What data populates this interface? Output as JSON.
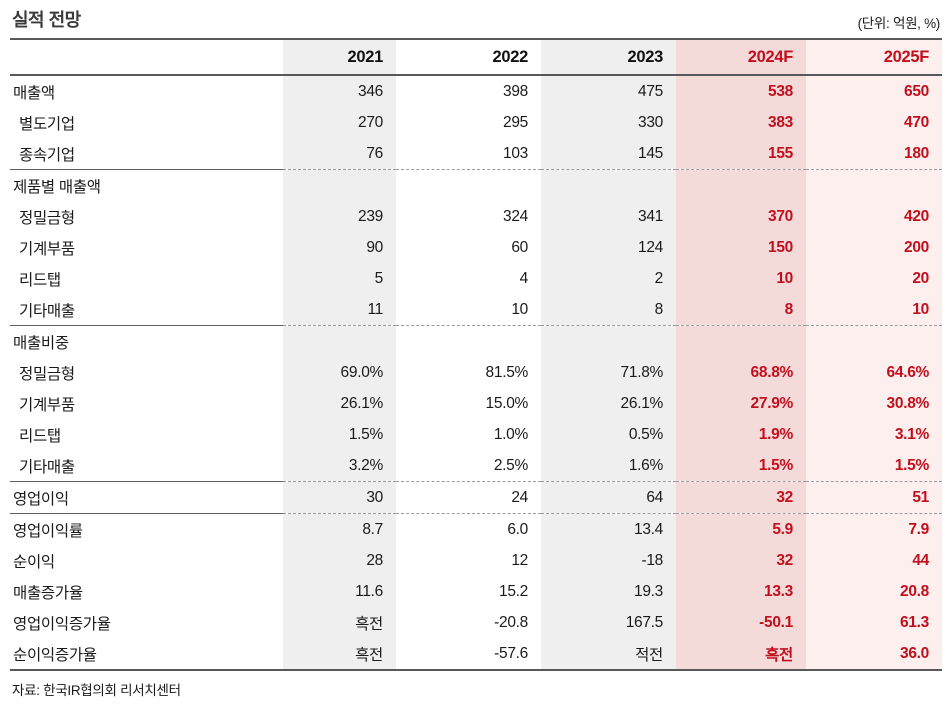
{
  "header": {
    "title": "실적 전망",
    "unit_label": "(단위: 억원, %)"
  },
  "colors": {
    "accent_red": "#c20f1e",
    "column_gray": "#f0efef",
    "forecast_pink": "#f5dada",
    "forecast_pink_light": "#fcefee",
    "rule_dark": "#57585a"
  },
  "table": {
    "label_header": "",
    "columns": [
      "2021",
      "2022",
      "2023",
      "2024F",
      "2025F"
    ],
    "forecast_columns": [
      "2024F",
      "2025F"
    ],
    "rows": [
      {
        "label": "매출액",
        "indent": false,
        "divider_above": false,
        "values": [
          "346",
          "398",
          "475",
          "538",
          "650"
        ]
      },
      {
        "label": "별도기업",
        "indent": true,
        "divider_above": false,
        "values": [
          "270",
          "295",
          "330",
          "383",
          "470"
        ]
      },
      {
        "label": "종속기업",
        "indent": true,
        "divider_above": false,
        "values": [
          "76",
          "103",
          "145",
          "155",
          "180"
        ]
      },
      {
        "label": "제품별 매출액",
        "indent": false,
        "divider_above": true,
        "values": [
          "",
          "",
          "",
          "",
          ""
        ]
      },
      {
        "label": "정밀금형",
        "indent": true,
        "divider_above": false,
        "values": [
          "239",
          "324",
          "341",
          "370",
          "420"
        ]
      },
      {
        "label": "기계부품",
        "indent": true,
        "divider_above": false,
        "values": [
          "90",
          "60",
          "124",
          "150",
          "200"
        ]
      },
      {
        "label": "리드탭",
        "indent": true,
        "divider_above": false,
        "values": [
          "5",
          "4",
          "2",
          "10",
          "20"
        ]
      },
      {
        "label": "기타매출",
        "indent": true,
        "divider_above": false,
        "values": [
          "11",
          "10",
          "8",
          "8",
          "10"
        ]
      },
      {
        "label": "매출비중",
        "indent": false,
        "divider_above": true,
        "values": [
          "",
          "",
          "",
          "",
          ""
        ]
      },
      {
        "label": "정밀금형",
        "indent": true,
        "divider_above": false,
        "values": [
          "69.0%",
          "81.5%",
          "71.8%",
          "68.8%",
          "64.6%"
        ]
      },
      {
        "label": "기계부품",
        "indent": true,
        "divider_above": false,
        "values": [
          "26.1%",
          "15.0%",
          "26.1%",
          "27.9%",
          "30.8%"
        ]
      },
      {
        "label": "리드탭",
        "indent": true,
        "divider_above": false,
        "values": [
          "1.5%",
          "1.0%",
          "0.5%",
          "1.9%",
          "3.1%"
        ]
      },
      {
        "label": "기타매출",
        "indent": true,
        "divider_above": false,
        "values": [
          "3.2%",
          "2.5%",
          "1.6%",
          "1.5%",
          "1.5%"
        ]
      },
      {
        "label": "영업이익",
        "indent": false,
        "divider_above": true,
        "values": [
          "30",
          "24",
          "64",
          "32",
          "51"
        ]
      },
      {
        "label": "영업이익률",
        "indent": false,
        "divider_above": true,
        "values": [
          "8.7",
          "6.0",
          "13.4",
          "5.9",
          "7.9"
        ]
      },
      {
        "label": "순이익",
        "indent": false,
        "divider_above": false,
        "values": [
          "28",
          "12",
          "-18",
          "32",
          "44"
        ]
      },
      {
        "label": "매출증가율",
        "indent": false,
        "divider_above": false,
        "values": [
          "11.6",
          "15.2",
          "19.3",
          "13.3",
          "20.8"
        ]
      },
      {
        "label": "영업이익증가율",
        "indent": false,
        "divider_above": false,
        "values": [
          "흑전",
          "-20.8",
          "167.5",
          "-50.1",
          "61.3"
        ]
      },
      {
        "label": "순이익증가율",
        "indent": false,
        "divider_above": false,
        "values": [
          "흑전",
          "-57.6",
          "적전",
          "흑전",
          "36.0"
        ]
      }
    ]
  },
  "footer": {
    "source": "자료: 한국IR협의회 리서치센터"
  }
}
